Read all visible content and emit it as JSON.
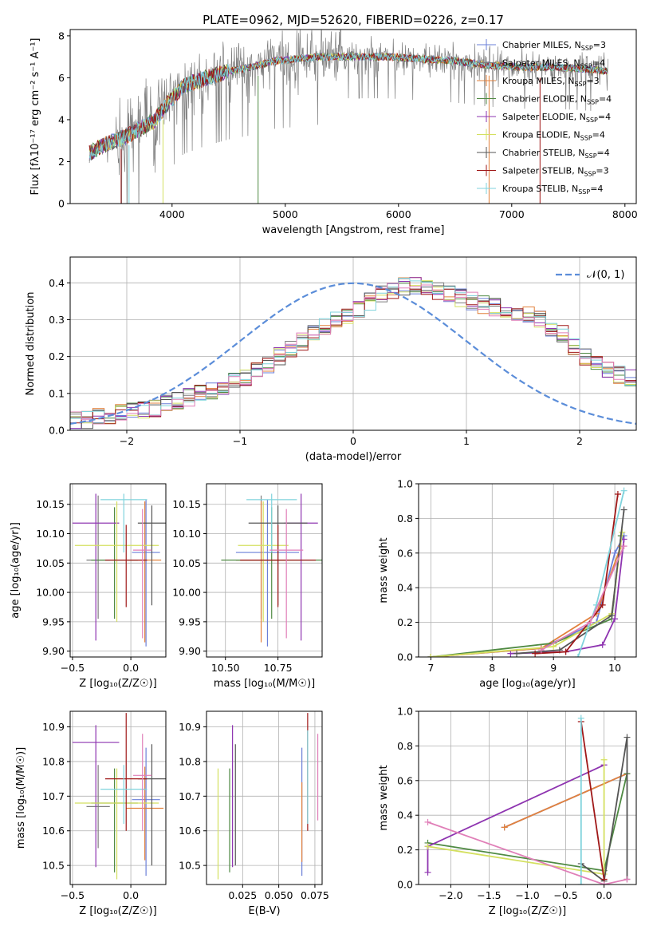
{
  "title": "PLATE=0962, MJD=52620, FIBERID=0226, z=0.17",
  "colors": {
    "Chabrier MILES": "#6a7fd8",
    "Salpeter MILES": "#7d7d7d",
    "Kroupa MILES": "#e2813c",
    "Chabrier ELODIE": "#4f8a43",
    "Salpeter ELODIE": "#8e34b0",
    "Kroupa ELODIE": "#d4e060",
    "Chabrier STELIB": "#555555",
    "Salpeter STELIB": "#a01818",
    "Kroupa STELIB": "#7fd3dc",
    "pink": "#e07fb8",
    "normal": "#5b8dd9"
  },
  "chart_data": [
    {
      "type": "line",
      "panel": "spectrum",
      "xlabel": "wavelength [Angstrom, rest frame]",
      "ylabel": "Flux [fλ10⁻¹⁷ erg cm⁻² s⁻¹ A⁻¹]",
      "xlim": [
        3100,
        8100
      ],
      "ylim": [
        0,
        8.3
      ],
      "xticks": [
        "4000",
        "5000",
        "6000",
        "7000",
        "8000"
      ],
      "yticks": [
        "0",
        "2",
        "4",
        "6",
        "8"
      ],
      "continuum": [
        [
          3270,
          2.4
        ],
        [
          3400,
          2.8
        ],
        [
          3550,
          3.1
        ],
        [
          3700,
          3.5
        ],
        [
          3850,
          4.0
        ],
        [
          3950,
          4.7
        ],
        [
          4100,
          5.6
        ],
        [
          4300,
          6.0
        ],
        [
          4500,
          6.3
        ],
        [
          4700,
          6.5
        ],
        [
          4900,
          6.8
        ],
        [
          5100,
          6.9
        ],
        [
          5300,
          7.0
        ],
        [
          5600,
          7.0
        ],
        [
          5900,
          7.0
        ],
        [
          6200,
          6.9
        ],
        [
          6500,
          6.8
        ],
        [
          6800,
          6.6
        ],
        [
          7100,
          6.5
        ],
        [
          7400,
          6.5
        ],
        [
          7700,
          6.4
        ],
        [
          7850,
          6.3
        ]
      ],
      "legend_location": "right",
      "legend": [
        {
          "label": "Chabrier MILES, N",
          "sub": "SSP",
          "eq": "=3"
        },
        {
          "label": "Salpeter MILES, N",
          "sub": "SSP",
          "eq": "=4"
        },
        {
          "label": "Kroupa MILES, N",
          "sub": "SSP",
          "eq": "=3"
        },
        {
          "label": "Chabrier ELODIE, N",
          "sub": "SSP",
          "eq": "=4"
        },
        {
          "label": "Salpeter ELODIE, N",
          "sub": "SSP",
          "eq": "=4"
        },
        {
          "label": "Kroupa ELODIE, N",
          "sub": "SSP",
          "eq": "=4"
        },
        {
          "label": "Chabrier STELIB, N",
          "sub": "SSP",
          "eq": "=4"
        },
        {
          "label": "Salpeter STELIB, N",
          "sub": "SSP",
          "eq": "=3"
        },
        {
          "label": "Kroupa STELIB, N",
          "sub": "SSP",
          "eq": "=4"
        }
      ]
    },
    {
      "type": "line",
      "panel": "residuals",
      "xlabel": "(data-model)/error",
      "ylabel": "Normed distribution",
      "xlim": [
        -2.5,
        2.5
      ],
      "ylim": [
        0,
        0.47
      ],
      "xticks": [
        "−2",
        "−1",
        "0",
        "1",
        "2"
      ],
      "yticks": [
        "0.0",
        "0.1",
        "0.2",
        "0.3",
        "0.4"
      ],
      "legend": "𝒩(0, 1)",
      "legend_location": "upper right",
      "bin_width": 0.1,
      "bin_start": -2.5,
      "mean_hist": [
        0.025,
        0.03,
        0.035,
        0.04,
        0.045,
        0.05,
        0.055,
        0.06,
        0.07,
        0.08,
        0.09,
        0.1,
        0.11,
        0.12,
        0.13,
        0.14,
        0.16,
        0.18,
        0.2,
        0.22,
        0.24,
        0.26,
        0.28,
        0.3,
        0.31,
        0.33,
        0.35,
        0.37,
        0.38,
        0.39,
        0.395,
        0.39,
        0.38,
        0.37,
        0.36,
        0.35,
        0.34,
        0.335,
        0.33,
        0.32,
        0.31,
        0.3,
        0.28,
        0.26,
        0.23,
        0.2,
        0.18,
        0.16,
        0.15,
        0.14,
        0.13,
        0.11,
        0.1,
        0.09,
        0.08,
        0.07,
        0.06,
        0.055,
        0.05,
        0.045,
        0.04,
        0.035,
        0.03,
        0.028,
        0.025,
        0.025,
        0.022,
        0.02,
        0.02,
        0.02,
        0.02
      ]
    },
    {
      "type": "scatter",
      "panel": "age-vs-Z",
      "xlabel": "Z [log₁₀(Z/Z☉)]",
      "ylabel": "age  [log₁₀(age/yr)]",
      "xlim": [
        -0.52,
        0.3
      ],
      "ylim": [
        9.89,
        10.185
      ],
      "xticks": [
        "−0.5",
        "0.0"
      ],
      "yticks": [
        "9.90",
        "9.95",
        "10.00",
        "10.05",
        "10.10",
        "10.15"
      ],
      "points": [
        {
          "s": "Chabrier MILES",
          "x": 0.13,
          "y": 10.068,
          "xe": 0.12,
          "ye": [
            0.16,
            0.09
          ]
        },
        {
          "s": "Salpeter MILES",
          "x": -0.28,
          "y": 10.055,
          "xe": 0.1,
          "ye": [
            0.1,
            0.11
          ]
        },
        {
          "s": "Kroupa MILES",
          "x": 0.12,
          "y": 10.055,
          "xe": 0.14,
          "ye": [
            0.14,
            0.1
          ]
        },
        {
          "s": "Chabrier ELODIE",
          "x": -0.14,
          "y": 10.055,
          "xe": 0.2,
          "ye": [
            0.1,
            0.09
          ]
        },
        {
          "s": "Salpeter ELODIE",
          "x": -0.3,
          "y": 10.118,
          "xe": 0.2,
          "ye": [
            0.2,
            0.05
          ]
        },
        {
          "s": "Kroupa ELODIE",
          "x": -0.12,
          "y": 10.08,
          "xe": 0.36,
          "ye": [
            0.13,
            0.075
          ]
        },
        {
          "s": "Chabrier STELIB",
          "x": 0.18,
          "y": 10.118,
          "xe": 0.12,
          "ye": [
            0.14,
            0.03
          ]
        },
        {
          "s": "Salpeter STELIB",
          "x": -0.04,
          "y": 10.055,
          "xe": 0.18,
          "ye": [
            0.08,
            0.06
          ]
        },
        {
          "s": "Kroupa STELIB",
          "x": -0.06,
          "y": 10.158,
          "xe": 0.2,
          "ye": [
            0.09,
            0.01
          ]
        },
        {
          "s": "pink",
          "x": 0.1,
          "y": 10.072,
          "xe": 0.08,
          "ye": [
            0.15,
            0.07
          ]
        }
      ]
    },
    {
      "type": "scatter",
      "panel": "age-vs-mass",
      "xlabel": "mass [log₁₀(M/M☉)]",
      "ylabel": "",
      "xlim": [
        10.41,
        10.96
      ],
      "ylim": [
        9.89,
        10.185
      ],
      "xticks": [
        "10.50",
        "10.75"
      ],
      "yticks": [
        "9.90",
        "9.95",
        "10.00",
        "10.05",
        "10.10",
        "10.15"
      ],
      "points": [
        {
          "s": "Chabrier MILES",
          "x": 10.7,
          "y": 10.068,
          "xe": 0.15,
          "ye": [
            0.16,
            0.09
          ]
        },
        {
          "s": "Salpeter MILES",
          "x": 10.67,
          "y": 10.055,
          "xe": 0.12,
          "ye": [
            0.1,
            0.11
          ]
        },
        {
          "s": "Kroupa MILES",
          "x": 10.67,
          "y": 10.055,
          "xe": 0.12,
          "ye": [
            0.14,
            0.1
          ]
        },
        {
          "s": "Chabrier ELODIE",
          "x": 10.72,
          "y": 10.055,
          "xe": 0.24,
          "ye": [
            0.1,
            0.09
          ]
        },
        {
          "s": "Salpeter ELODIE",
          "x": 10.86,
          "y": 10.118,
          "xe": 0.08,
          "ye": [
            0.2,
            0.05
          ]
        },
        {
          "s": "Kroupa ELODIE",
          "x": 10.68,
          "y": 10.08,
          "xe": 0.12,
          "ye": [
            0.13,
            0.075
          ]
        },
        {
          "s": "Chabrier STELIB",
          "x": 10.75,
          "y": 10.118,
          "xe": 0.14,
          "ye": [
            0.14,
            0.03
          ]
        },
        {
          "s": "Salpeter STELIB",
          "x": 10.75,
          "y": 10.055,
          "xe": 0.18,
          "ye": [
            0.08,
            0.06
          ]
        },
        {
          "s": "Kroupa STELIB",
          "x": 10.72,
          "y": 10.158,
          "xe": 0.12,
          "ye": [
            0.09,
            0.01
          ]
        },
        {
          "s": "pink",
          "x": 10.79,
          "y": 10.072,
          "xe": 0.08,
          "ye": [
            0.15,
            0.07
          ]
        }
      ]
    },
    {
      "type": "line",
      "panel": "mass-weight-vs-age",
      "xlabel": "age  [log₁₀(age/yr)]",
      "ylabel": "mass weight",
      "xlim": [
        6.8,
        10.35
      ],
      "ylim": [
        0,
        1.0
      ],
      "xticks": [
        "7",
        "8",
        "9",
        "10"
      ],
      "yticks": [
        "0.0",
        "0.2",
        "0.4",
        "0.6",
        "0.8",
        "1.0"
      ],
      "series": [
        {
          "s": "Chabrier MILES",
          "points": [
            [
              7.0,
              0.0
            ],
            [
              8.8,
              0.05
            ],
            [
              9.7,
              0.2
            ],
            [
              10.0,
              0.6
            ],
            [
              10.15,
              0.7
            ]
          ]
        },
        {
          "s": "Kroupa MILES",
          "points": [
            [
              7.0,
              0.0
            ],
            [
              8.8,
              0.05
            ],
            [
              9.7,
              0.25
            ],
            [
              10.1,
              0.64
            ]
          ]
        },
        {
          "s": "Chabrier ELODIE",
          "points": [
            [
              7.0,
              0.0
            ],
            [
              9.0,
              0.08
            ],
            [
              9.95,
              0.22
            ],
            [
              10.1,
              0.7
            ]
          ]
        },
        {
          "s": "Salpeter ELODIE",
          "points": [
            [
              8.3,
              0.02
            ],
            [
              9.2,
              0.03
            ],
            [
              9.8,
              0.07
            ],
            [
              10.0,
              0.22
            ],
            [
              10.15,
              0.68
            ]
          ]
        },
        {
          "s": "Kroupa ELODIE",
          "points": [
            [
              7.0,
              0.0
            ],
            [
              9.0,
              0.06
            ],
            [
              9.95,
              0.25
            ],
            [
              10.12,
              0.72
            ]
          ]
        },
        {
          "s": "Chabrier STELIB",
          "points": [
            [
              8.4,
              0.02
            ],
            [
              9.1,
              0.04
            ],
            [
              9.95,
              0.24
            ],
            [
              10.15,
              0.85
            ]
          ]
        },
        {
          "s": "Salpeter STELIB",
          "points": [
            [
              8.7,
              0.02
            ],
            [
              9.2,
              0.03
            ],
            [
              9.8,
              0.3
            ],
            [
              10.05,
              0.94
            ]
          ]
        },
        {
          "s": "Kroupa STELIB",
          "points": [
            [
              9.4,
              0.0
            ],
            [
              9.7,
              0.3
            ],
            [
              10.15,
              0.96
            ]
          ]
        },
        {
          "s": "pink",
          "points": [
            [
              8.8,
              0.04
            ],
            [
              9.6,
              0.2
            ],
            [
              10.15,
              0.64
            ]
          ]
        }
      ]
    },
    {
      "type": "scatter",
      "panel": "mass-vs-Z",
      "xlabel": "Z [log₁₀(Z/Z☉)]",
      "ylabel": "mass [log₁₀(M/M☉)]",
      "xlim": [
        -0.52,
        0.3
      ],
      "ylim": [
        10.445,
        10.945
      ],
      "xticks": [
        "−0.5",
        "0.0"
      ],
      "yticks": [
        "10.5",
        "10.6",
        "10.7",
        "10.8",
        "10.9"
      ],
      "points": [
        {
          "s": "Chabrier MILES",
          "x": 0.13,
          "y": 10.69,
          "xe": 0.12,
          "ye": [
            0.22,
            0.15
          ]
        },
        {
          "s": "Salpeter MILES",
          "x": -0.28,
          "y": 10.67,
          "xe": 0.1,
          "ye": [
            0.12,
            0.12
          ]
        },
        {
          "s": "Kroupa MILES",
          "x": 0.12,
          "y": 10.665,
          "xe": 0.16,
          "ye": [
            0.15,
            0.12
          ]
        },
        {
          "s": "Chabrier ELODIE",
          "x": -0.14,
          "y": 10.68,
          "xe": 0.2,
          "ye": [
            0.2,
            0.1
          ]
        },
        {
          "s": "Salpeter ELODIE",
          "x": -0.3,
          "y": 10.855,
          "xe": 0.2,
          "ye": [
            0.36,
            0.05
          ]
        },
        {
          "s": "Kroupa ELODIE",
          "x": -0.12,
          "y": 10.68,
          "xe": 0.36,
          "ye": [
            0.22,
            0.1
          ]
        },
        {
          "s": "Chabrier STELIB",
          "x": 0.18,
          "y": 10.75,
          "xe": 0.12,
          "ye": [
            0.25,
            0.1
          ]
        },
        {
          "s": "Salpeter STELIB",
          "x": -0.04,
          "y": 10.75,
          "xe": 0.18,
          "ye": [
            0.15,
            0.19
          ]
        },
        {
          "s": "Kroupa STELIB",
          "x": -0.06,
          "y": 10.72,
          "xe": 0.2,
          "ye": [
            0.1,
            0.07
          ]
        },
        {
          "s": "pink",
          "x": 0.1,
          "y": 10.76,
          "xe": 0.08,
          "ye": [
            0.16,
            0.12
          ]
        }
      ]
    },
    {
      "type": "scatter",
      "panel": "mass-vs-EBV",
      "xlabel": "E(B-V)",
      "ylabel": "",
      "xlim": [
        0.0,
        0.08
      ],
      "ylim": [
        10.445,
        10.945
      ],
      "xticks": [
        "0.025",
        "0.050",
        "0.075"
      ],
      "yticks": [
        "10.5",
        "10.6",
        "10.7",
        "10.8",
        "10.9"
      ],
      "points": [
        {
          "s": "Chabrier MILES",
          "x": 0.066,
          "y": 10.69,
          "ye": [
            0.22,
            0.15
          ]
        },
        {
          "s": "Kroupa MILES",
          "x": 0.066,
          "y": 10.66,
          "ye": [
            0.15,
            0.08
          ]
        },
        {
          "s": "Chabrier ELODIE",
          "x": 0.016,
          "y": 10.68,
          "ye": [
            0.2,
            0.1
          ]
        },
        {
          "s": "Salpeter ELODIE",
          "x": 0.018,
          "y": 10.855,
          "ye": [
            0.36,
            0.05
          ]
        },
        {
          "s": "Kroupa ELODIE",
          "x": 0.008,
          "y": 10.68,
          "ye": [
            0.22,
            0.1
          ]
        },
        {
          "s": "Chabrier STELIB",
          "x": 0.02,
          "y": 10.75,
          "ye": [
            0.25,
            0.1
          ]
        },
        {
          "s": "Salpeter STELIB",
          "x": 0.07,
          "y": 10.75,
          "ye": [
            0.15,
            0.19
          ]
        },
        {
          "s": "Kroupa STELIB",
          "x": 0.07,
          "y": 10.72,
          "ye": [
            0.1,
            0.17
          ]
        },
        {
          "s": "pink",
          "x": 0.077,
          "y": 10.76,
          "ye": [
            0.13,
            0.12
          ]
        }
      ]
    },
    {
      "type": "line",
      "panel": "mass-weight-vs-Z",
      "xlabel": "Z [log₁₀(Z/Z☉)]",
      "ylabel": "mass weight",
      "xlim": [
        -2.42,
        0.42
      ],
      "ylim": [
        0,
        1.0
      ],
      "xticks": [
        "−2.0",
        "−1.5",
        "−1.0",
        "−0.5",
        "0.0"
      ],
      "yticks": [
        "0.0",
        "0.2",
        "0.4",
        "0.6",
        "0.8",
        "1.0"
      ],
      "series": [
        {
          "s": "Chabrier MILES",
          "points": [
            [
              -1.3,
              0.33
            ],
            [
              0.3,
              0.64
            ]
          ]
        },
        {
          "s": "Kroupa MILES",
          "points": [
            [
              -1.3,
              0.33
            ],
            [
              0.3,
              0.64
            ]
          ]
        },
        {
          "s": "Chabrier ELODIE",
          "points": [
            [
              -2.3,
              0.24
            ],
            [
              0.0,
              0.08
            ],
            [
              0.3,
              0.64
            ]
          ]
        },
        {
          "s": "Salpeter ELODIE",
          "points": [
            [
              -2.3,
              0.07
            ],
            [
              -2.3,
              0.22
            ],
            [
              0.0,
              0.69
            ]
          ]
        },
        {
          "s": "Kroupa ELODIE",
          "points": [
            [
              -2.3,
              0.22
            ],
            [
              0.0,
              0.06
            ],
            [
              0.0,
              0.72
            ]
          ]
        },
        {
          "s": "Chabrier STELIB",
          "points": [
            [
              -0.3,
              0.12
            ],
            [
              0.0,
              0.02
            ],
            [
              0.3,
              0.85
            ],
            [
              0.3,
              0.03
            ]
          ]
        },
        {
          "s": "Salpeter STELIB",
          "points": [
            [
              -0.3,
              0.94
            ],
            [
              0.0,
              0.03
            ]
          ]
        },
        {
          "s": "Kroupa STELIB",
          "points": [
            [
              -0.3,
              0.96
            ],
            [
              -0.3,
              0.0
            ]
          ]
        },
        {
          "s": "pink",
          "points": [
            [
              -2.3,
              0.36
            ],
            [
              0.0,
              0.0
            ],
            [
              0.3,
              0.03
            ]
          ]
        }
      ]
    }
  ]
}
